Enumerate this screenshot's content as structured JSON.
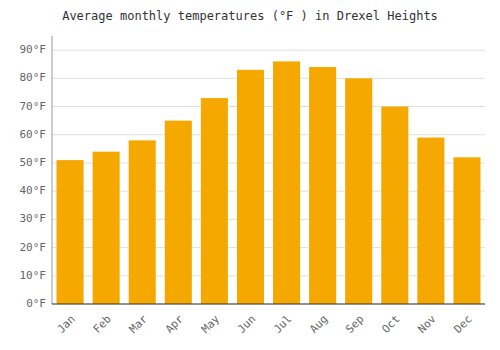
{
  "chart_data": {
    "type": "bar",
    "title": "Average monthly temperatures (°F ) in Drexel Heights",
    "categories": [
      "Jan",
      "Feb",
      "Mar",
      "Apr",
      "May",
      "Jun",
      "Jul",
      "Aug",
      "Sep",
      "Oct",
      "Nov",
      "Dec"
    ],
    "values": [
      51,
      54,
      58,
      65,
      73,
      83,
      86,
      84,
      80,
      70,
      59,
      52
    ],
    "color": "#F5A800",
    "ylim": [
      0,
      95
    ],
    "yticks": [
      {
        "value": 0,
        "label": "0°F"
      },
      {
        "value": 10,
        "label": "10°F"
      },
      {
        "value": 20,
        "label": "20°F"
      },
      {
        "value": 30,
        "label": "30°F"
      },
      {
        "value": 40,
        "label": "40°F"
      },
      {
        "value": 50,
        "label": "50°F"
      },
      {
        "value": 60,
        "label": "60°F"
      },
      {
        "value": 70,
        "label": "70°F"
      },
      {
        "value": 80,
        "label": "80°F"
      },
      {
        "value": 90,
        "label": "90°F"
      }
    ],
    "grid": true
  }
}
